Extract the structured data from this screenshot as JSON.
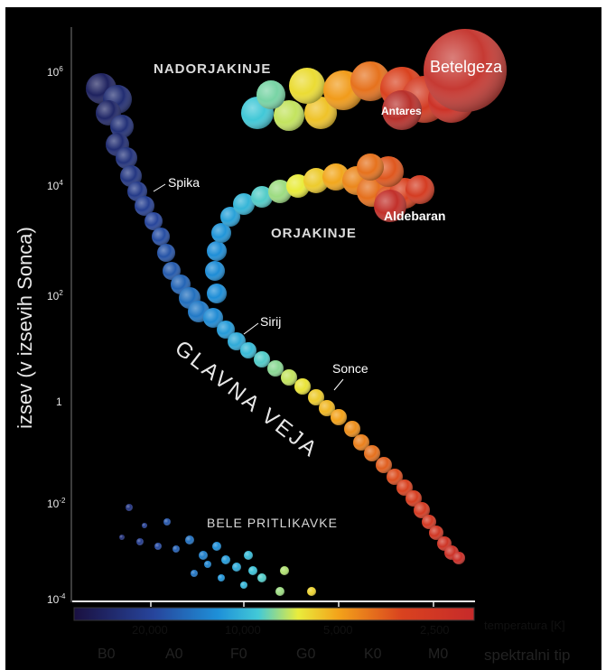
{
  "y_axis": {
    "label": "izsev (v izsevih Sonca)",
    "ticks": [
      {
        "base": "10",
        "exp": "6",
        "value": 1000000
      },
      {
        "base": "10",
        "exp": "4",
        "value": 10000
      },
      {
        "base": "10",
        "exp": "2",
        "value": 100
      },
      {
        "base": "1",
        "exp": "",
        "value": 1
      },
      {
        "base": "10",
        "exp": "-2",
        "value": 0.01
      },
      {
        "base": "10",
        "exp": "-4",
        "value": 0.0001
      }
    ]
  },
  "regions": {
    "supergiants": "NADORJAKINJE",
    "giants": "ORJAKINJE",
    "main_sequence": "GLAVNA VEJA",
    "white_dwarfs": "BELE PRITLIKAVKE"
  },
  "stars": {
    "betelgeuse": "Betelgeza",
    "antares": "Antares",
    "aldebaran": "Aldebaran",
    "spica": "Spika",
    "sirius": "Sirij",
    "sun": "Sonce"
  },
  "temperature": {
    "label": "temperatura [K]",
    "ticks": [
      "20,000",
      "10,000",
      "5,000",
      "2,500"
    ],
    "gradient": [
      "#1a1040",
      "#27459c",
      "#1e90d8",
      "#42c9d7",
      "#e9ec3c",
      "#f3a31a",
      "#d9421f",
      "#c62a2a"
    ]
  },
  "spectral": {
    "label": "spektralni tip",
    "types": [
      "B0",
      "A0",
      "F0",
      "G0",
      "K0",
      "M0"
    ]
  }
}
